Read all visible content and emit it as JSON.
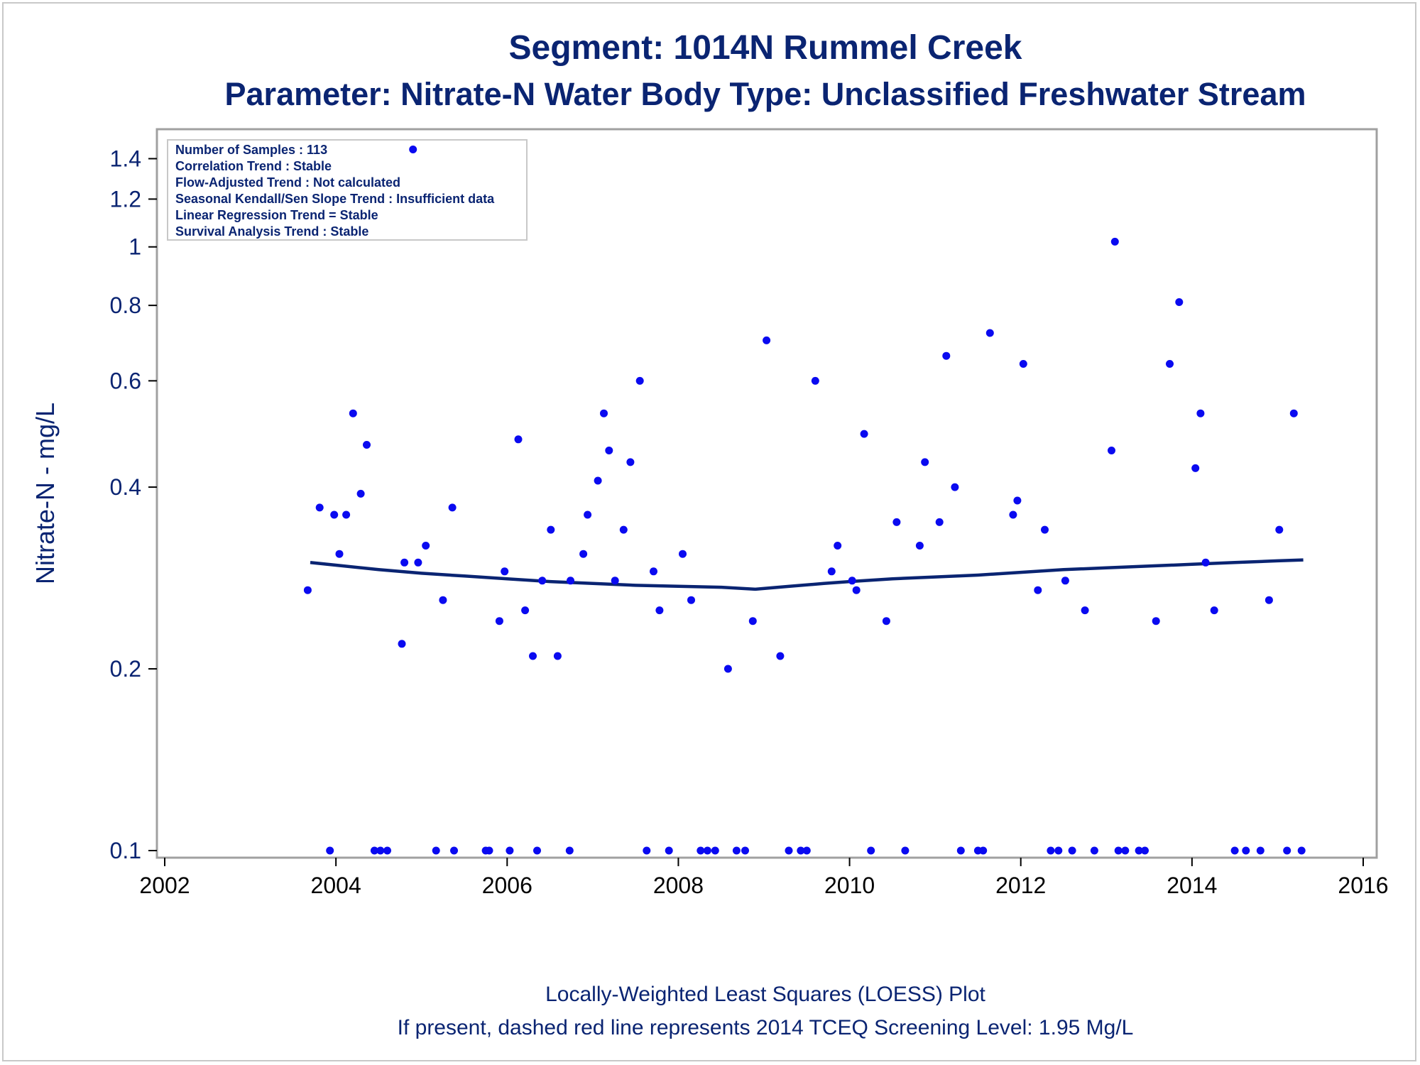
{
  "chart_data": {
    "type": "scatter",
    "title": "Segment: 1014N  Rummel Creek",
    "subtitle": "Parameter: Nitrate-N   Water Body Type: Unclassified Freshwater Stream",
    "xlabel": "",
    "ylabel": "Nitrate-N - mg/L",
    "xlim": [
      2002,
      2016
    ],
    "ylim": [
      0.1,
      1.5
    ],
    "yscale": "log",
    "x_ticks": [
      2002,
      2004,
      2006,
      2008,
      2010,
      2012,
      2014,
      2016
    ],
    "y_ticks": [
      0.1,
      0.2,
      0.4,
      0.6,
      0.8,
      1,
      1.2,
      1.4
    ],
    "y_tick_labels": [
      "0.1",
      "0.2",
      "0.4",
      "0.6",
      "0.8",
      "1",
      "1.2",
      "1.4"
    ],
    "grid": false,
    "info_box": [
      "Number of Samples : 113",
      "Correlation Trend : Stable",
      "Flow-Adjusted Trend : Not calculated",
      "Seasonal Kendall/Sen Slope Trend : Insufficient data",
      "Linear Regression Trend = Stable",
      "Survival Analysis Trend : Stable"
    ],
    "footnotes": [
      "Locally-Weighted Least Squares (LOESS) Plot",
      "If present, dashed red line represents 2014 TCEQ Screening Level: 1.95 Mg/L"
    ],
    "colors": {
      "points": "#0a0af0",
      "loess": "#0a2472",
      "text": "#0a2472",
      "frame": "#a0a0a0"
    },
    "series": [
      {
        "type": "scatter",
        "points": [
          [
            2003.67,
            0.27
          ],
          [
            2003.81,
            0.37
          ],
          [
            2003.93,
            0.1
          ],
          [
            2003.98,
            0.36
          ],
          [
            2004.04,
            0.31
          ],
          [
            2004.12,
            0.36
          ],
          [
            2004.2,
            0.53
          ],
          [
            2004.29,
            0.39
          ],
          [
            2004.36,
            0.47
          ],
          [
            2004.45,
            0.1
          ],
          [
            2004.52,
            0.1
          ],
          [
            2004.6,
            0.1
          ],
          [
            2004.77,
            0.22
          ],
          [
            2004.8,
            0.3
          ],
          [
            2004.9,
            1.45
          ],
          [
            2004.96,
            0.3
          ],
          [
            2005.05,
            0.32
          ],
          [
            2005.17,
            0.1
          ],
          [
            2005.25,
            0.26
          ],
          [
            2005.36,
            0.37
          ],
          [
            2005.38,
            0.1
          ],
          [
            2005.75,
            0.1
          ],
          [
            2005.79,
            0.1
          ],
          [
            2005.91,
            0.24
          ],
          [
            2005.97,
            0.29
          ],
          [
            2006.03,
            0.1
          ],
          [
            2006.13,
            0.48
          ],
          [
            2006.21,
            0.25
          ],
          [
            2006.3,
            0.21
          ],
          [
            2006.35,
            0.1
          ],
          [
            2006.41,
            0.28
          ],
          [
            2006.51,
            0.34
          ],
          [
            2006.59,
            0.21
          ],
          [
            2006.73,
            0.1
          ],
          [
            2006.74,
            0.28
          ],
          [
            2006.89,
            0.31
          ],
          [
            2006.94,
            0.36
          ],
          [
            2007.06,
            0.41
          ],
          [
            2007.13,
            0.53
          ],
          [
            2007.19,
            0.46
          ],
          [
            2007.26,
            0.28
          ],
          [
            2007.36,
            0.34
          ],
          [
            2007.44,
            0.44
          ],
          [
            2007.55,
            0.6
          ],
          [
            2007.63,
            0.1
          ],
          [
            2007.71,
            0.29
          ],
          [
            2007.78,
            0.25
          ],
          [
            2007.89,
            0.1
          ],
          [
            2008.05,
            0.31
          ],
          [
            2008.15,
            0.26
          ],
          [
            2008.26,
            0.1
          ],
          [
            2008.34,
            0.1
          ],
          [
            2008.43,
            0.1
          ],
          [
            2008.58,
            0.2
          ],
          [
            2008.68,
            0.1
          ],
          [
            2008.78,
            0.1
          ],
          [
            2008.87,
            0.24
          ],
          [
            2009.03,
            0.7
          ],
          [
            2009.19,
            0.21
          ],
          [
            2009.29,
            0.1
          ],
          [
            2009.43,
            0.1
          ],
          [
            2009.5,
            0.1
          ],
          [
            2009.6,
            0.6
          ],
          [
            2009.79,
            0.29
          ],
          [
            2009.86,
            0.32
          ],
          [
            2010.03,
            0.28
          ],
          [
            2010.08,
            0.27
          ],
          [
            2010.17,
            0.49
          ],
          [
            2010.25,
            0.1
          ],
          [
            2010.43,
            0.24
          ],
          [
            2010.55,
            0.35
          ],
          [
            2010.65,
            0.1
          ],
          [
            2010.82,
            0.32
          ],
          [
            2010.88,
            0.44
          ],
          [
            2011.05,
            0.35
          ],
          [
            2011.13,
            0.66
          ],
          [
            2011.23,
            0.4
          ],
          [
            2011.3,
            0.1
          ],
          [
            2011.5,
            0.1
          ],
          [
            2011.56,
            0.1
          ],
          [
            2011.64,
            0.72
          ],
          [
            2011.91,
            0.36
          ],
          [
            2011.96,
            0.38
          ],
          [
            2012.03,
            0.64
          ],
          [
            2012.2,
            0.27
          ],
          [
            2012.28,
            0.34
          ],
          [
            2012.35,
            0.1
          ],
          [
            2012.44,
            0.1
          ],
          [
            2012.52,
            0.28
          ],
          [
            2012.6,
            0.1
          ],
          [
            2012.75,
            0.25
          ],
          [
            2012.86,
            0.1
          ],
          [
            2013.06,
            0.46
          ],
          [
            2013.1,
            1.02
          ],
          [
            2013.14,
            0.1
          ],
          [
            2013.22,
            0.1
          ],
          [
            2013.38,
            0.1
          ],
          [
            2013.45,
            0.1
          ],
          [
            2013.58,
            0.24
          ],
          [
            2013.74,
            0.64
          ],
          [
            2013.85,
            0.81
          ],
          [
            2014.04,
            0.43
          ],
          [
            2014.1,
            0.53
          ],
          [
            2014.16,
            0.3
          ],
          [
            2014.26,
            0.25
          ],
          [
            2014.5,
            0.1
          ],
          [
            2014.63,
            0.1
          ],
          [
            2014.8,
            0.1
          ],
          [
            2014.9,
            0.26
          ],
          [
            2015.02,
            0.34
          ],
          [
            2015.11,
            0.1
          ],
          [
            2015.19,
            0.53
          ],
          [
            2015.28,
            0.1
          ]
        ]
      },
      {
        "type": "line",
        "points": [
          [
            2003.7,
            0.3
          ],
          [
            2004.0,
            0.297
          ],
          [
            2004.5,
            0.292
          ],
          [
            2005.0,
            0.288
          ],
          [
            2005.5,
            0.285
          ],
          [
            2006.0,
            0.282
          ],
          [
            2006.5,
            0.279
          ],
          [
            2007.0,
            0.277
          ],
          [
            2007.5,
            0.275
          ],
          [
            2008.0,
            0.274
          ],
          [
            2008.5,
            0.273
          ],
          [
            2008.9,
            0.271
          ],
          [
            2009.3,
            0.274
          ],
          [
            2009.7,
            0.277
          ],
          [
            2010.0,
            0.279
          ],
          [
            2010.5,
            0.282
          ],
          [
            2011.0,
            0.284
          ],
          [
            2011.5,
            0.286
          ],
          [
            2012.0,
            0.289
          ],
          [
            2012.5,
            0.292
          ],
          [
            2013.0,
            0.294
          ],
          [
            2013.5,
            0.296
          ],
          [
            2014.0,
            0.298
          ],
          [
            2014.5,
            0.3
          ],
          [
            2015.0,
            0.302
          ],
          [
            2015.3,
            0.303
          ]
        ]
      }
    ]
  }
}
